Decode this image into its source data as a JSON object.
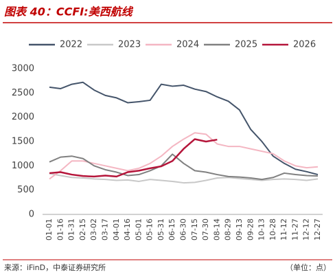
{
  "chart_data": {
    "type": "line",
    "title": "图表 40：CCFI:美西航线",
    "source": "来源：iFinD，中泰证券研究所",
    "unit_note": "（单位：点）",
    "categories": [
      "01-01",
      "01-16",
      "01-31",
      "02-15",
      "03-02",
      "03-17",
      "04-01",
      "04-16",
      "05-01",
      "05-16",
      "05-31",
      "06-15",
      "06-30",
      "07-15",
      "07-30",
      "08-14",
      "08-29",
      "09-13",
      "09-28",
      "10-13",
      "10-28",
      "11-12",
      "11-27",
      "12-12",
      "12-27"
    ],
    "series": [
      {
        "name": "2022",
        "color": "#44546a",
        "values": [
          2620,
          2590,
          2680,
          2720,
          2560,
          2450,
          2400,
          2300,
          2320,
          2350,
          2680,
          2640,
          2660,
          2580,
          2530,
          2420,
          2330,
          2150,
          1750,
          1500,
          1200,
          1050,
          930,
          880,
          820
        ]
      },
      {
        "name": "2023",
        "color": "#c8c8c8",
        "values": [
          840,
          800,
          760,
          750,
          730,
          720,
          700,
          710,
          680,
          720,
          700,
          680,
          650,
          660,
          700,
          750,
          760,
          740,
          720,
          700,
          720,
          730,
          720,
          700,
          730
        ]
      },
      {
        "name": "2024",
        "color": "#f4b6c2",
        "values": [
          730,
          900,
          1100,
          1100,
          1050,
          1000,
          950,
          900,
          950,
          1050,
          1200,
          1400,
          1550,
          1680,
          1650,
          1450,
          1400,
          1400,
          1350,
          1300,
          1250,
          1100,
          1000,
          960,
          980
        ]
      },
      {
        "name": "2025",
        "color": "#808080",
        "values": [
          1080,
          1180,
          1200,
          1150,
          1000,
          920,
          870,
          800,
          820,
          900,
          1000,
          1240,
          1050,
          900,
          870,
          820,
          780,
          770,
          750,
          720,
          760,
          850,
          820,
          800,
          790
        ]
      },
      {
        "name": "2026",
        "color": "#b5153a",
        "values": [
          850,
          870,
          820,
          790,
          780,
          800,
          780,
          870,
          900,
          950,
          990,
          1100,
          1350,
          1550,
          1500,
          1540,
          null,
          null,
          null,
          null,
          null,
          null,
          null,
          null,
          null
        ]
      }
    ],
    "ylim": [
      0,
      3000
    ],
    "yticks": [
      0,
      500,
      1000,
      1500,
      2000,
      2500,
      3000
    ]
  }
}
